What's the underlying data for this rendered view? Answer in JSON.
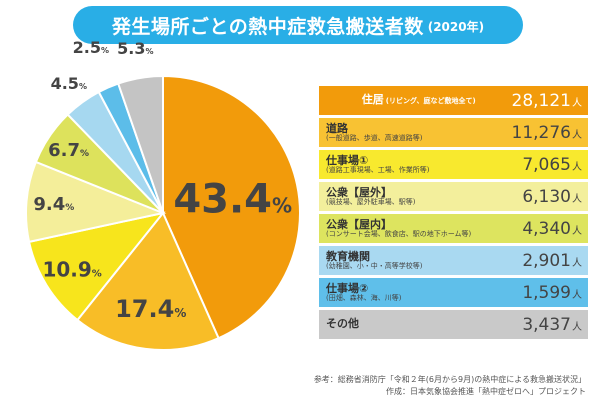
{
  "title": {
    "main": "発生場所ごとの熱中症救急搬送者数",
    "sub": "(2020年)"
  },
  "chart_data": {
    "type": "pie",
    "title": "発生場所ごとの熱中症救急搬送者数(2020年)",
    "slices": [
      {
        "label": "住居",
        "note": "(リビング、庭など敷地全て)",
        "value": 28121,
        "percent": 43.4,
        "percent_label": "43.4",
        "color": "#f29b0b",
        "row_color": "#f29b0b"
      },
      {
        "label": "道路",
        "note": "(一般道路、歩道、高速道路等)",
        "value": 11276,
        "percent": 17.4,
        "percent_label": "17.4",
        "color": "#f8bd27",
        "row_color": "#f8c233"
      },
      {
        "label": "仕事場①",
        "note": "(道路工事現場、工場、作業所等)",
        "value": 7065,
        "percent": 10.9,
        "percent_label": "10.9",
        "color": "#f7e51c",
        "row_color": "#f8e92e"
      },
      {
        "label": "公衆【屋外】",
        "note": "(競技場、屋外駐車場、駅等)",
        "value": 6130,
        "percent": 9.4,
        "percent_label": "9.4",
        "color": "#f4ee9a",
        "row_color": "#f3ef9c"
      },
      {
        "label": "公衆【屋内】",
        "note": "(コンサート会場、飲食店、駅の地下ホーム等)",
        "value": 4340,
        "percent": 6.7,
        "percent_label": "6.7",
        "color": "#dde25c",
        "row_color": "#dde45f"
      },
      {
        "label": "教育機関",
        "note": "(幼稚園、小・中・高等学校等)",
        "value": 2901,
        "percent": 4.5,
        "percent_label": "4.5",
        "color": "#a6d8f0",
        "row_color": "#a9d9f1"
      },
      {
        "label": "仕事場②",
        "note": "(田畑、森林、海、川等)",
        "value": 1599,
        "percent": 2.5,
        "percent_label": "2.5",
        "color": "#5cbde9",
        "row_color": "#5fbfea"
      },
      {
        "label": "その他",
        "note": "",
        "value": 3437,
        "percent": 5.3,
        "percent_label": "5.3",
        "color": "#c4c4c4",
        "row_color": "#c9c9c9"
      }
    ],
    "unit": "人",
    "percent_sign": "%",
    "legend": "right"
  },
  "footer": {
    "line1": "参考：総務省消防庁「令和２年(6月から9月)の熱中症による救急搬送状況」",
    "line2": "作成：日本気象協会推進「熱中症ゼロへ」プロジェクト"
  }
}
